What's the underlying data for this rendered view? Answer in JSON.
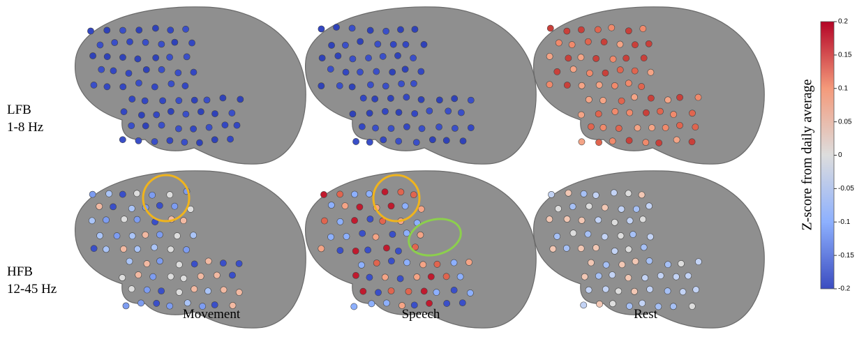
{
  "figure": {
    "rows": [
      {
        "lines": [
          "LFB",
          "1-8 Hz"
        ]
      },
      {
        "lines": [
          "HFB",
          "12-45 Hz"
        ]
      }
    ],
    "columns": [
      "Movement",
      "Speech",
      "Rest"
    ]
  },
  "colorbar": {
    "label": "Z-score from daily average",
    "lim": [
      -0.2,
      0.2
    ],
    "ticks": [
      0.2,
      0.15,
      0.1,
      0.05,
      0,
      -0.05,
      -0.1,
      -0.15,
      -0.2
    ]
  }
}
